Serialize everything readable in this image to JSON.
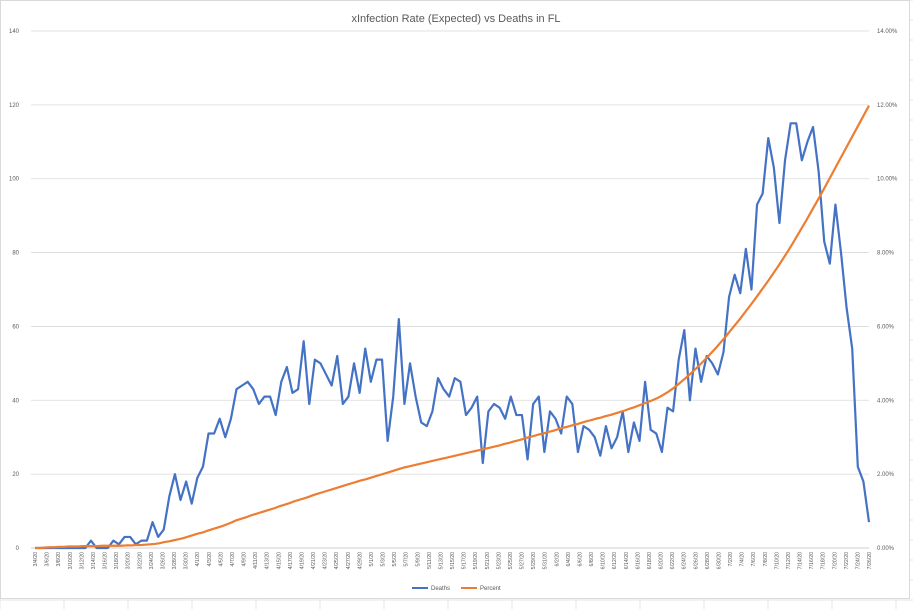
{
  "chart_data": {
    "type": "line",
    "title": "xInfection Rate (Expected) vs Deaths in FL",
    "grid": true,
    "legend_position": "bottom",
    "y_left": {
      "min": 0,
      "max": 140,
      "step": 20
    },
    "y_right": {
      "min": 0,
      "max": 0.14,
      "step": 0.02,
      "format": "percent"
    },
    "x_labels": [
      "3/4/20",
      "3/6/20",
      "3/8/20",
      "3/10/20",
      "3/12/20",
      "3/14/20",
      "3/16/20",
      "3/18/20",
      "3/20/20",
      "3/22/20",
      "3/24/20",
      "3/26/20",
      "3/28/20",
      "3/30/20",
      "4/1/20",
      "4/3/20",
      "4/5/20",
      "4/7/20",
      "4/9/20",
      "4/11/20",
      "4/13/20",
      "4/15/20",
      "4/17/20",
      "4/19/20",
      "4/21/20",
      "4/23/20",
      "4/25/20",
      "4/27/20",
      "4/29/20",
      "5/1/20",
      "5/3/20",
      "5/5/20",
      "5/7/20",
      "5/9/20",
      "5/11/20",
      "5/13/20",
      "5/15/20",
      "5/17/20",
      "5/19/20",
      "5/21/20",
      "5/23/20",
      "5/25/20",
      "5/27/20",
      "5/29/20",
      "5/31/20",
      "6/2/20",
      "6/4/20",
      "6/6/20",
      "6/8/20",
      "6/10/20",
      "6/12/20",
      "6/14/20",
      "6/16/20",
      "6/18/20",
      "6/20/20",
      "6/22/20",
      "6/24/20",
      "6/26/20",
      "6/28/20",
      "6/30/20",
      "7/2/20",
      "7/4/20",
      "7/6/20",
      "7/8/20",
      "7/10/20",
      "7/12/20",
      "7/14/20",
      "7/16/20",
      "7/18/20",
      "7/20/20",
      "7/22/20",
      "7/24/20",
      "7/26/20"
    ],
    "series": [
      {
        "name": "Deaths",
        "axis": "left",
        "color": "#4472C4",
        "values": [
          0,
          0,
          0,
          0,
          0,
          0,
          0,
          0,
          0,
          0,
          2,
          0,
          0,
          0,
          2,
          1,
          3,
          3,
          1,
          2,
          2,
          7,
          3,
          5,
          14,
          20,
          13,
          18,
          12,
          19,
          22,
          31,
          31,
          35,
          30,
          35,
          43,
          44,
          45,
          43,
          39,
          41,
          41,
          36,
          45,
          49,
          42,
          43,
          56,
          39,
          51,
          50,
          47,
          44,
          52,
          39,
          41,
          50,
          42,
          54,
          45,
          51,
          51,
          29,
          41,
          62,
          39,
          50,
          41,
          34,
          33,
          37,
          46,
          43,
          41,
          46,
          45,
          36,
          38,
          41,
          23,
          37,
          39,
          38,
          35,
          41,
          36,
          36,
          24,
          39,
          41,
          26,
          37,
          35,
          31,
          41,
          39,
          26,
          33,
          32,
          30,
          25,
          33,
          27,
          30,
          37,
          26,
          34,
          29,
          45,
          32,
          31,
          26,
          38,
          37,
          51,
          59,
          40,
          54,
          45,
          52,
          50,
          47,
          53,
          68,
          74,
          69,
          81,
          70,
          93,
          96,
          111,
          103,
          88,
          105,
          115,
          115,
          105,
          110,
          114,
          102,
          83,
          77,
          93,
          80,
          65,
          54,
          22,
          18,
          7
        ]
      },
      {
        "name": "Percent",
        "axis": "right",
        "color": "#ED7D31",
        "values": [
          0,
          0,
          0.0001,
          0.0002,
          0.0002,
          0.0003,
          0.0003,
          0.0004,
          0.0004,
          0.0004,
          0.0005,
          0.0005,
          0.0005,
          0.0005,
          0.0006,
          0.0006,
          0.0006,
          0.0006,
          0.0006,
          0.0007,
          0.0007,
          0.0008,
          0.0008,
          0.0009,
          0.001,
          0.0011,
          0.0013,
          0.0016,
          0.0018,
          0.0021,
          0.0024,
          0.0027,
          0.0031,
          0.0035,
          0.0039,
          0.0042,
          0.0047,
          0.0051,
          0.0055,
          0.0059,
          0.0064,
          0.0069,
          0.0075,
          0.0079,
          0.0083,
          0.0088,
          0.0092,
          0.0096,
          0.01,
          0.0104,
          0.0108,
          0.0113,
          0.0117,
          0.0121,
          0.0126,
          0.013,
          0.0134,
          0.0138,
          0.0143,
          0.0147,
          0.0151,
          0.0155,
          0.0159,
          0.0163,
          0.0167,
          0.0171,
          0.0175,
          0.0179,
          0.0183,
          0.0186,
          0.019,
          0.0194,
          0.0198,
          0.0202,
          0.0206,
          0.021,
          0.0214,
          0.0218,
          0.0221,
          0.0224,
          0.0227,
          0.023,
          0.0233,
          0.0236,
          0.0239,
          0.0242,
          0.0245,
          0.0248,
          0.0251,
          0.0254,
          0.0257,
          0.026,
          0.0263,
          0.0266,
          0.0269,
          0.0272,
          0.0275,
          0.0278,
          0.0282,
          0.0285,
          0.0289,
          0.0292,
          0.0296,
          0.03,
          0.0303,
          0.0307,
          0.031,
          0.0314,
          0.0317,
          0.0321,
          0.0325,
          0.0328,
          0.0332,
          0.0335,
          0.0339,
          0.0343,
          0.0346,
          0.035,
          0.0353,
          0.0357,
          0.036,
          0.0364,
          0.0368,
          0.0372,
          0.0377,
          0.0381,
          0.0386,
          0.0391,
          0.0396,
          0.0401,
          0.0407,
          0.0414,
          0.0422,
          0.0431,
          0.0441,
          0.0452,
          0.0463,
          0.0475,
          0.0487,
          0.05,
          0.0513,
          0.0527,
          0.0541,
          0.0556,
          0.0571,
          0.0587,
          0.0603,
          0.0619,
          0.0636,
          0.0653,
          0.067,
          0.0688,
          0.0706,
          0.0724,
          0.0743,
          0.0762,
          0.0782,
          0.0802,
          0.0823,
          0.0845,
          0.0867,
          0.0889,
          0.0912,
          0.0935,
          0.0958,
          0.0982,
          0.1006,
          0.103,
          0.1054,
          0.1078,
          0.1102,
          0.1126,
          0.115,
          0.1174,
          0.1198
        ]
      }
    ]
  }
}
